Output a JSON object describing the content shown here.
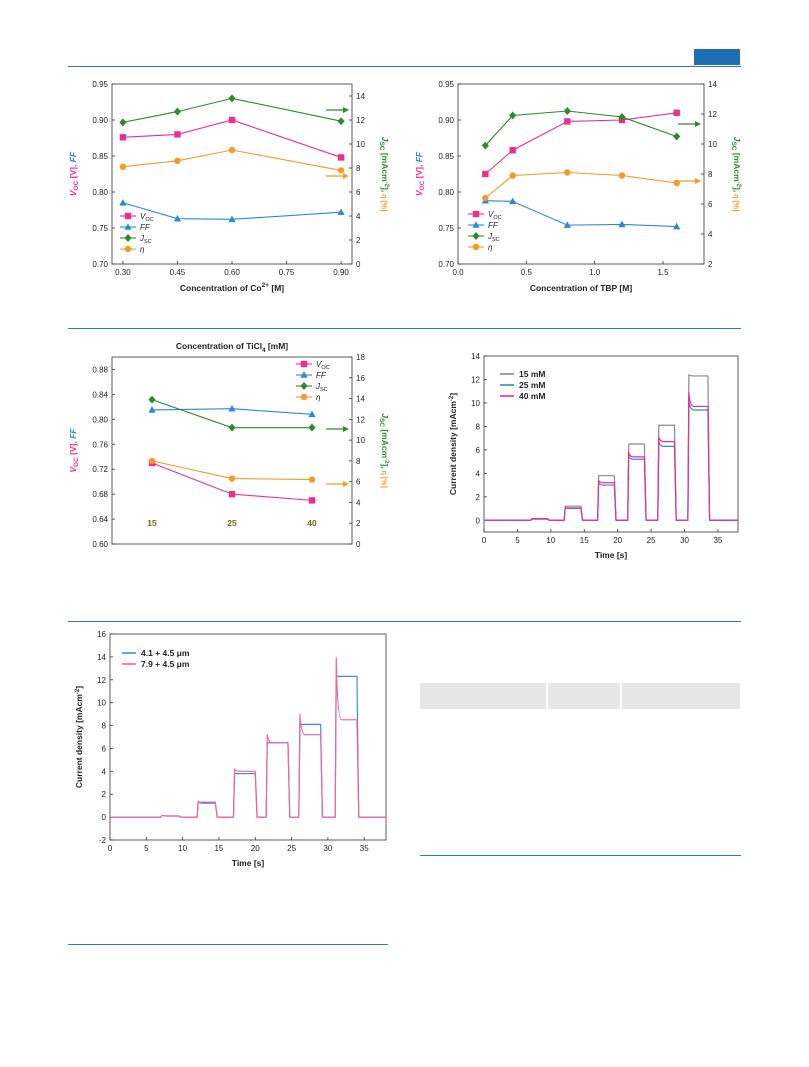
{
  "colors": {
    "accent": "#1f6fb5",
    "pink": "#ec2f8b",
    "blue": "#2b8ad6",
    "green": "#2a8c2a",
    "orange": "#f39a27",
    "grey": "#8a8a8a",
    "pink2": "#f0649a",
    "blue2": "#3d8fd6"
  },
  "figures": [
    {
      "id": "fig1",
      "chart_data": {
        "type": "line",
        "x": [
          0.3,
          0.45,
          0.6,
          0.9
        ],
        "xlabel": "Concentration of Co2+ [M]",
        "xlabel_main": "Concentration of Co",
        "xlabel_sup": "2+",
        "xlabel_tail": " [M]",
        "xticks": [
          "0.30",
          "0.45",
          "0.60",
          "0.75",
          "0.90"
        ],
        "xlim": [
          0.27,
          0.93
        ],
        "ylim_left": [
          0.7,
          0.95
        ],
        "yticks_left": [
          "0.70",
          "0.75",
          "0.80",
          "0.85",
          "0.90",
          "0.95"
        ],
        "ylim_right": [
          0,
          15
        ],
        "yticks_right": [
          "0",
          "2",
          "4",
          "6",
          "8",
          "10",
          "12",
          "14"
        ],
        "ylabel_left": "VOC [V], FF",
        "ylabel_right": "JSC [mAcm-2], η [%]",
        "series": [
          {
            "name": "VOC",
            "axis": "left",
            "color": "pink",
            "marker": "square",
            "values": [
              0.876,
              0.88,
              0.9,
              0.848
            ]
          },
          {
            "name": "FF",
            "axis": "left",
            "color": "blue",
            "marker": "triangle",
            "values": [
              0.785,
              0.763,
              0.762,
              0.772
            ]
          },
          {
            "name": "JSC",
            "axis": "right",
            "color": "green",
            "marker": "diamond",
            "values": [
              11.8,
              12.7,
              13.8,
              11.9
            ]
          },
          {
            "name": "η",
            "axis": "right",
            "color": "orange",
            "marker": "circle",
            "values": [
              8.1,
              8.6,
              9.5,
              7.8
            ]
          }
        ],
        "legend": "bottom-left"
      }
    },
    {
      "id": "fig2",
      "chart_data": {
        "type": "line",
        "x": [
          0.2,
          0.4,
          0.8,
          1.2,
          1.6
        ],
        "xlabel": "Concentration of TBP [M]",
        "xticks": [
          "0.0",
          "0.5",
          "1.0",
          "1.5"
        ],
        "xlim": [
          0,
          1.8
        ],
        "ylim_left": [
          0.7,
          0.95
        ],
        "yticks_left": [
          "0.70",
          "0.75",
          "0.80",
          "0.85",
          "0.90",
          "0.95"
        ],
        "ylim_right": [
          2,
          14
        ],
        "yticks_right": [
          "2",
          "4",
          "6",
          "8",
          "10",
          "12",
          "14"
        ],
        "ylabel_left": "VOC [V], FF",
        "ylabel_right": "JSC [mAcm-2], η [%]",
        "series": [
          {
            "name": "VOC",
            "axis": "left",
            "color": "pink",
            "marker": "square",
            "values": [
              0.825,
              0.858,
              0.898,
              0.9,
              0.91
            ]
          },
          {
            "name": "FF",
            "axis": "left",
            "color": "blue",
            "marker": "triangle",
            "values": [
              0.788,
              0.787,
              0.754,
              0.755,
              0.752
            ]
          },
          {
            "name": "JSC",
            "axis": "right",
            "color": "green",
            "marker": "diamond",
            "values": [
              9.9,
              11.9,
              12.2,
              11.8,
              10.5
            ]
          },
          {
            "name": "η",
            "axis": "right",
            "color": "orange",
            "marker": "circle",
            "values": [
              6.4,
              7.9,
              8.1,
              7.9,
              7.4
            ]
          }
        ],
        "legend": "bottom-left"
      }
    },
    {
      "id": "fig3",
      "chart_data": {
        "type": "line",
        "title": "Concentration of TiCl4 [mM]",
        "title_main": "Concentration of TiCl",
        "title_sub": "4",
        "title_tail": " [mM]",
        "x": [
          15,
          25,
          40
        ],
        "xticks_inside": [
          "15",
          "25",
          "40"
        ],
        "ylim_left": [
          0.6,
          0.9
        ],
        "yticks_left": [
          "0.60",
          "0.64",
          "0.68",
          "0.72",
          "0.76",
          "0.80",
          "0.84",
          "0.88"
        ],
        "ylim_right": [
          0,
          18
        ],
        "yticks_right": [
          "0",
          "2",
          "4",
          "6",
          "8",
          "10",
          "12",
          "14",
          "16",
          "18"
        ],
        "ylabel_left": "VOC [V], FF",
        "ylabel_right": "JSC [mAcm-2], η [%]",
        "series": [
          {
            "name": "VOC",
            "axis": "left",
            "color": "pink",
            "marker": "square",
            "values": [
              0.73,
              0.68,
              0.67
            ]
          },
          {
            "name": "FF",
            "axis": "left",
            "color": "blue",
            "marker": "triangle",
            "values": [
              0.815,
              0.817,
              0.808
            ]
          },
          {
            "name": "JSC",
            "axis": "right",
            "color": "green",
            "marker": "diamond",
            "values": [
              13.9,
              11.2,
              11.2
            ]
          },
          {
            "name": "η",
            "axis": "right",
            "color": "orange",
            "marker": "circle",
            "values": [
              8.0,
              6.3,
              6.2
            ]
          }
        ],
        "legend": "top-right"
      }
    },
    {
      "id": "fig4",
      "chart_data": {
        "type": "line",
        "xlabel": "Time [s]",
        "ylabel": "Current density [mAcm-2]",
        "xlim": [
          0,
          38
        ],
        "ylim": [
          -1,
          14
        ],
        "xticks": [
          "0",
          "5",
          "10",
          "15",
          "20",
          "25",
          "30",
          "35"
        ],
        "yticks": [
          "0",
          "2",
          "4",
          "6",
          "8",
          "10",
          "12",
          "14"
        ],
        "pulses": [
          [
            7,
            9.5
          ],
          [
            12,
            14.5
          ],
          [
            17,
            19.5
          ],
          [
            21.5,
            24
          ],
          [
            26,
            28.5
          ],
          [
            30.5,
            33.5
          ]
        ],
        "series": [
          {
            "name": "15 mM",
            "color": "grey",
            "levels": [
              0.15,
              1.2,
              3.8,
              6.5,
              8.1,
              12.3
            ],
            "peaks": [
              0.15,
              1.2,
              3.8,
              6.5,
              8.1,
              12.4
            ]
          },
          {
            "name": "25 mM",
            "color": "blue",
            "levels": [
              0.1,
              1.0,
              3.0,
              5.2,
              6.3,
              9.4
            ],
            "peaks": [
              0.1,
              1.1,
              3.2,
              5.5,
              6.7,
              10.2
            ]
          },
          {
            "name": "40 mM",
            "color": "pink",
            "levels": [
              0.12,
              1.05,
              3.2,
              5.4,
              6.7,
              9.7
            ],
            "peaks": [
              0.12,
              1.1,
              3.4,
              5.8,
              7.1,
              10.9
            ]
          }
        ],
        "legend": "top-left"
      }
    },
    {
      "id": "fig5",
      "chart_data": {
        "type": "line",
        "xlabel": "Time [s]",
        "ylabel": "Current density [mAcm-2]",
        "xlim": [
          0,
          38
        ],
        "ylim": [
          -2,
          16
        ],
        "xticks": [
          "0",
          "5",
          "10",
          "15",
          "20",
          "25",
          "30",
          "35"
        ],
        "yticks": [
          "-2",
          "0",
          "2",
          "4",
          "6",
          "8",
          "10",
          "12",
          "14",
          "16"
        ],
        "pulses": [
          [
            7,
            9.5
          ],
          [
            12,
            14.5
          ],
          [
            17,
            20
          ],
          [
            21.5,
            24.5
          ],
          [
            26,
            29
          ],
          [
            31,
            34
          ]
        ],
        "series": [
          {
            "name": "4.1 + 4.5 μm",
            "color": "blue2",
            "levels": [
              0.1,
              1.3,
              3.8,
              6.5,
              8.1,
              12.3
            ],
            "peaks": [
              0.15,
              1.3,
              3.8,
              6.5,
              8.1,
              12.3
            ]
          },
          {
            "name": "7.9 + 4.5 μm",
            "color": "pink2",
            "levels": [
              0.1,
              1.2,
              4.0,
              6.5,
              7.2,
              8.5
            ],
            "peaks": [
              0.15,
              1.4,
              4.2,
              7.2,
              9.0,
              13.9
            ]
          }
        ],
        "legend": "top-left"
      }
    }
  ]
}
